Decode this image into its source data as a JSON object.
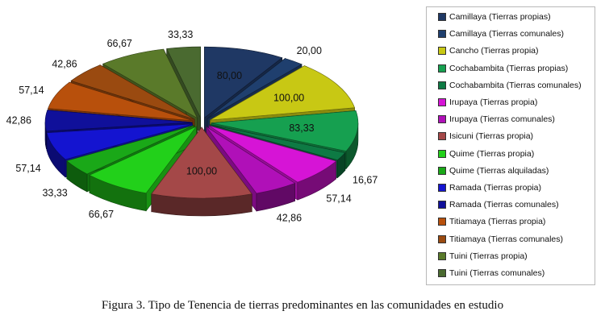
{
  "chart_data": {
    "type": "pie",
    "variant": "exploded-3d",
    "title": "Figura 3. Tipo de Tenencia de tierras predominantes en las comunidades en estudio",
    "legend_position": "right",
    "slices": [
      {
        "name": "Camillaya (Tierras propias)",
        "value": 80.0,
        "label": "80,00",
        "color": "#1f3864"
      },
      {
        "name": "Camillaya (Tierras comunales)",
        "value": 20.0,
        "label": "20,00",
        "color": "#1f3f6e"
      },
      {
        "name": "Cancho (Tierras propia)",
        "value": 100.0,
        "label": "100,00",
        "color": "#c8c814"
      },
      {
        "name": "Cochabambita (Tierras propias)",
        "value": 83.33,
        "label": "83,33",
        "color": "#16a050"
      },
      {
        "name": "Cochabambita (Tierras comunales)",
        "value": 16.67,
        "label": "16,67",
        "color": "#0e7a44"
      },
      {
        "name": "Irupaya (Tierras propia)",
        "value": 57.14,
        "label": "57,14",
        "color": "#d614d6"
      },
      {
        "name": "Irupaya (Tierras comunales)",
        "value": 42.86,
        "label": "42,86",
        "color": "#b010b8"
      },
      {
        "name": "Isicuni (Tierras propia)",
        "value": 100.0,
        "label": "100,00",
        "color": "#a44848"
      },
      {
        "name": "Quime (Tierras propia)",
        "value": 66.67,
        "label": "66,67",
        "color": "#22d01a"
      },
      {
        "name": "Quime (Tierras alquiladas)",
        "value": 33.33,
        "label": "33,33",
        "color": "#1aa818"
      },
      {
        "name": "Ramada (Tierras propia)",
        "value": 57.14,
        "label": "57,14",
        "color": "#1414d0"
      },
      {
        "name": "Ramada (Tierras comunales)",
        "value": 42.86,
        "label": "42,86",
        "color": "#10109a"
      },
      {
        "name": "Titiamaya (Tierras propia)",
        "value": 57.14,
        "label": "57,14",
        "color": "#b8500c"
      },
      {
        "name": "Titiamaya (Tierras comunales)",
        "value": 42.86,
        "label": "42,86",
        "color": "#9a4a10"
      },
      {
        "name": "Tuini (Tierras propia)",
        "value": 66.67,
        "label": "66,67",
        "color": "#5a7a2a"
      },
      {
        "name": "Tuini (Tierras comunales)",
        "value": 33.33,
        "label": "33,33",
        "color": "#4a6a30"
      }
    ]
  }
}
